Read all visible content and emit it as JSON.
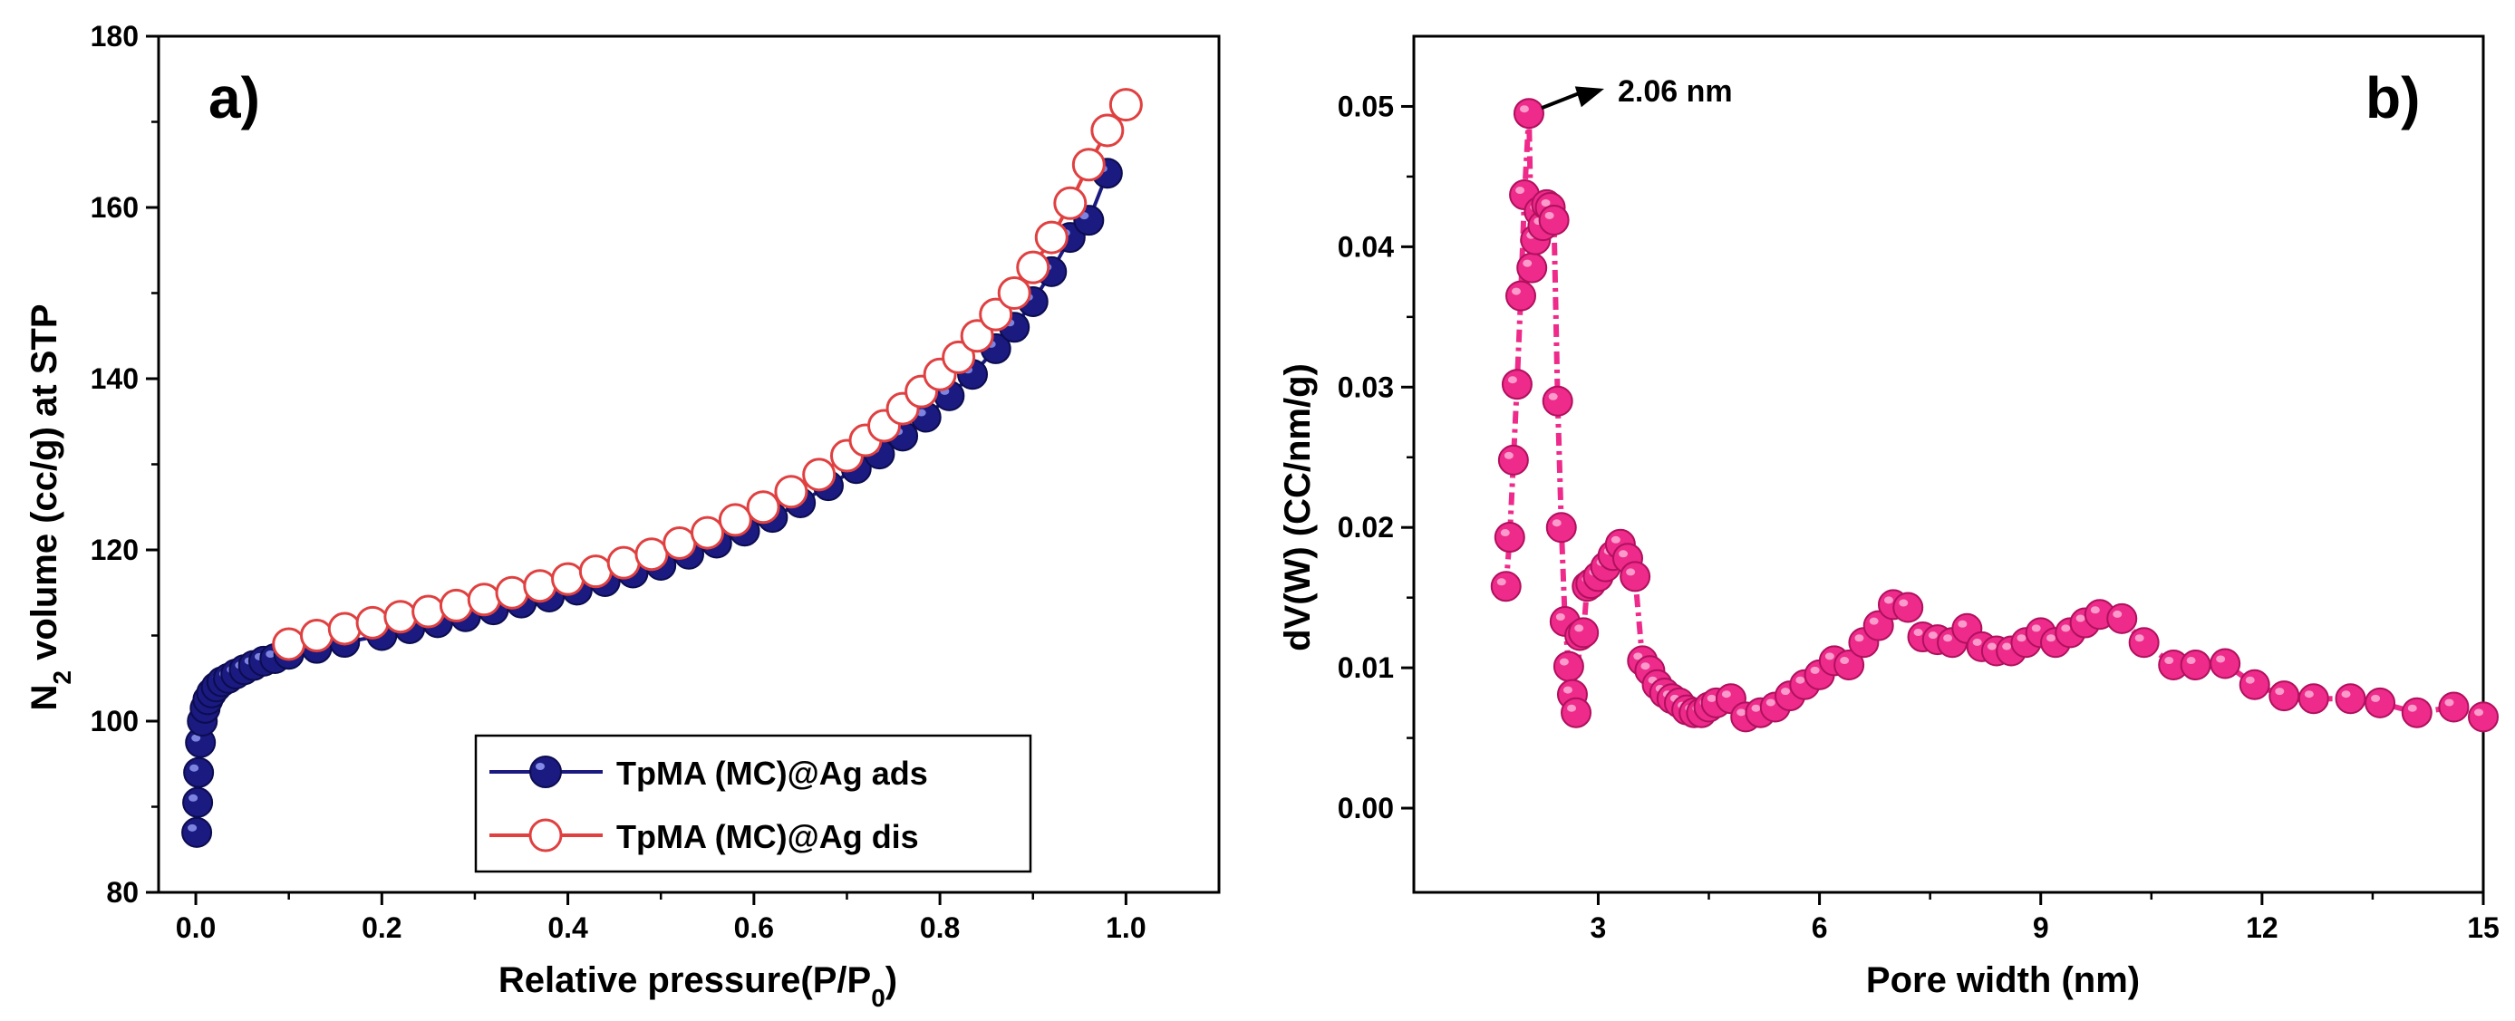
{
  "chart_data": [
    {
      "type": "line",
      "panel_label": "a)",
      "xlabel": "Relative pressure(P/P",
      "xlabel_sub": "0",
      "xlabel_end": ")",
      "ylabel_pre": "N",
      "ylabel_sub": "2",
      "ylabel_post": " volume (cc/g) at STP",
      "xlim": [
        -0.04,
        1.1
      ],
      "ylim": [
        80,
        180
      ],
      "xticks": [
        0.0,
        0.2,
        0.4,
        0.6,
        0.8,
        1.0
      ],
      "xtick_labels": [
        "0.0",
        "0.2",
        "0.4",
        "0.6",
        "0.8",
        "1.0"
      ],
      "yticks": [
        80,
        100,
        120,
        140,
        160,
        180
      ],
      "ytick_labels": [
        "80",
        "100",
        "120",
        "140",
        "160",
        "180"
      ],
      "legend_position": "bottom-right",
      "series": [
        {
          "name": "TpMA  (MC)@Ag ads",
          "color": "#1a1a80",
          "marker": "filled-circle",
          "x": [
            0.001,
            0.002,
            0.003,
            0.005,
            0.007,
            0.01,
            0.013,
            0.017,
            0.022,
            0.028,
            0.035,
            0.043,
            0.052,
            0.062,
            0.073,
            0.085,
            0.1,
            0.13,
            0.16,
            0.2,
            0.23,
            0.26,
            0.29,
            0.32,
            0.35,
            0.38,
            0.41,
            0.44,
            0.47,
            0.5,
            0.53,
            0.56,
            0.59,
            0.62,
            0.65,
            0.68,
            0.71,
            0.735,
            0.76,
            0.785,
            0.81,
            0.835,
            0.86,
            0.88,
            0.9,
            0.92,
            0.94,
            0.96,
            0.98
          ],
          "y": [
            87,
            90.5,
            94,
            97.5,
            100,
            101.5,
            102.5,
            103.3,
            104,
            104.6,
            105,
            105.5,
            106,
            106.5,
            107,
            107.3,
            107.8,
            108.5,
            109.2,
            110,
            110.8,
            111.5,
            112.2,
            113,
            113.8,
            114.5,
            115.3,
            116.3,
            117.3,
            118.2,
            119.5,
            120.8,
            122.2,
            123.8,
            125.5,
            127.5,
            129.5,
            131.2,
            133.3,
            135.5,
            138,
            140.5,
            143.5,
            146,
            149,
            152.5,
            156.5,
            158.5,
            164
          ]
        },
        {
          "name": "TpMA  (MC)@Ag dis",
          "color": "#e04040",
          "marker": "open-circle",
          "x": [
            0.1,
            0.13,
            0.16,
            0.19,
            0.22,
            0.25,
            0.28,
            0.31,
            0.34,
            0.37,
            0.4,
            0.43,
            0.46,
            0.49,
            0.52,
            0.55,
            0.58,
            0.61,
            0.64,
            0.67,
            0.7,
            0.72,
            0.74,
            0.76,
            0.78,
            0.8,
            0.82,
            0.84,
            0.86,
            0.88,
            0.9,
            0.92,
            0.94,
            0.96,
            0.98,
            1.0
          ],
          "y": [
            109,
            110,
            110.8,
            111.5,
            112.2,
            112.8,
            113.5,
            114.2,
            115,
            115.8,
            116.6,
            117.5,
            118.5,
            119.5,
            120.8,
            122,
            123.5,
            125,
            126.8,
            128.8,
            131,
            132.8,
            134.5,
            136.5,
            138.5,
            140.5,
            142.5,
            145,
            147.5,
            150,
            153,
            156.5,
            160.5,
            165,
            169,
            172
          ]
        }
      ]
    },
    {
      "type": "line",
      "panel_label": "b)",
      "xlabel": "Pore width (nm)",
      "ylabel": "dV(W) (CC/nm/g)",
      "xlim": [
        0.5,
        15
      ],
      "ylim": [
        -0.006,
        0.055
      ],
      "xticks": [
        3,
        6,
        9,
        12,
        15
      ],
      "xtick_labels": [
        "3",
        "6",
        "9",
        "12",
        "15"
      ],
      "yticks": [
        0.0,
        0.01,
        0.02,
        0.03,
        0.04,
        0.05
      ],
      "ytick_labels": [
        "0.00",
        "0.01",
        "0.02",
        "0.03",
        "0.04",
        "0.05"
      ],
      "annotation": {
        "text": "2.06 nm",
        "x": 2.06,
        "y": 0.0495
      },
      "series": [
        {
          "name": "",
          "color": "#ee2a8a",
          "marker": "filled-circle",
          "x": [
            1.75,
            1.8,
            1.85,
            1.9,
            1.95,
            2.0,
            2.06,
            2.1,
            2.15,
            2.2,
            2.25,
            2.3,
            2.35,
            2.4,
            2.45,
            2.5,
            2.55,
            2.6,
            2.65,
            2.7,
            2.75,
            2.8,
            2.85,
            2.9,
            3.0,
            3.1,
            3.2,
            3.3,
            3.4,
            3.5,
            3.6,
            3.7,
            3.8,
            3.9,
            4.0,
            4.1,
            4.2,
            4.3,
            4.4,
            4.5,
            4.6,
            4.8,
            5.0,
            5.2,
            5.4,
            5.6,
            5.8,
            6.0,
            6.2,
            6.4,
            6.6,
            6.8,
            7.0,
            7.2,
            7.4,
            7.6,
            7.8,
            8.0,
            8.2,
            8.4,
            8.6,
            8.8,
            9.0,
            9.2,
            9.4,
            9.6,
            9.8,
            10.1,
            10.4,
            10.8,
            11.1,
            11.5,
            11.9,
            12.3,
            12.7,
            13.2,
            13.6,
            14.1,
            14.6,
            15.0
          ],
          "y": [
            0.0158,
            0.0193,
            0.0248,
            0.0302,
            0.0365,
            0.0437,
            0.0495,
            0.0385,
            0.0405,
            0.0425,
            0.0415,
            0.043,
            0.0428,
            0.0419,
            0.029,
            0.02,
            0.0133,
            0.0101,
            0.0081,
            0.0068,
            0.0123,
            0.0125,
            0.0158,
            0.016,
            0.0165,
            0.0172,
            0.018,
            0.0188,
            0.0178,
            0.0165,
            0.0105,
            0.0098,
            0.0088,
            0.0082,
            0.0078,
            0.0075,
            0.007,
            0.0068,
            0.0068,
            0.0072,
            0.0075,
            0.0078,
            0.0065,
            0.0068,
            0.0072,
            0.008,
            0.0088,
            0.0095,
            0.0105,
            0.0102,
            0.0118,
            0.013,
            0.0145,
            0.0143,
            0.0122,
            0.012,
            0.0118,
            0.0128,
            0.0115,
            0.0112,
            0.0112,
            0.0118,
            0.0125,
            0.0118,
            0.0125,
            0.0132,
            0.0138,
            0.0135,
            0.0118,
            0.0102,
            0.0102,
            0.0103,
            0.0088,
            0.008,
            0.0078,
            0.0078,
            0.0075,
            0.0068,
            0.0072,
            0.0065
          ]
        }
      ]
    }
  ]
}
